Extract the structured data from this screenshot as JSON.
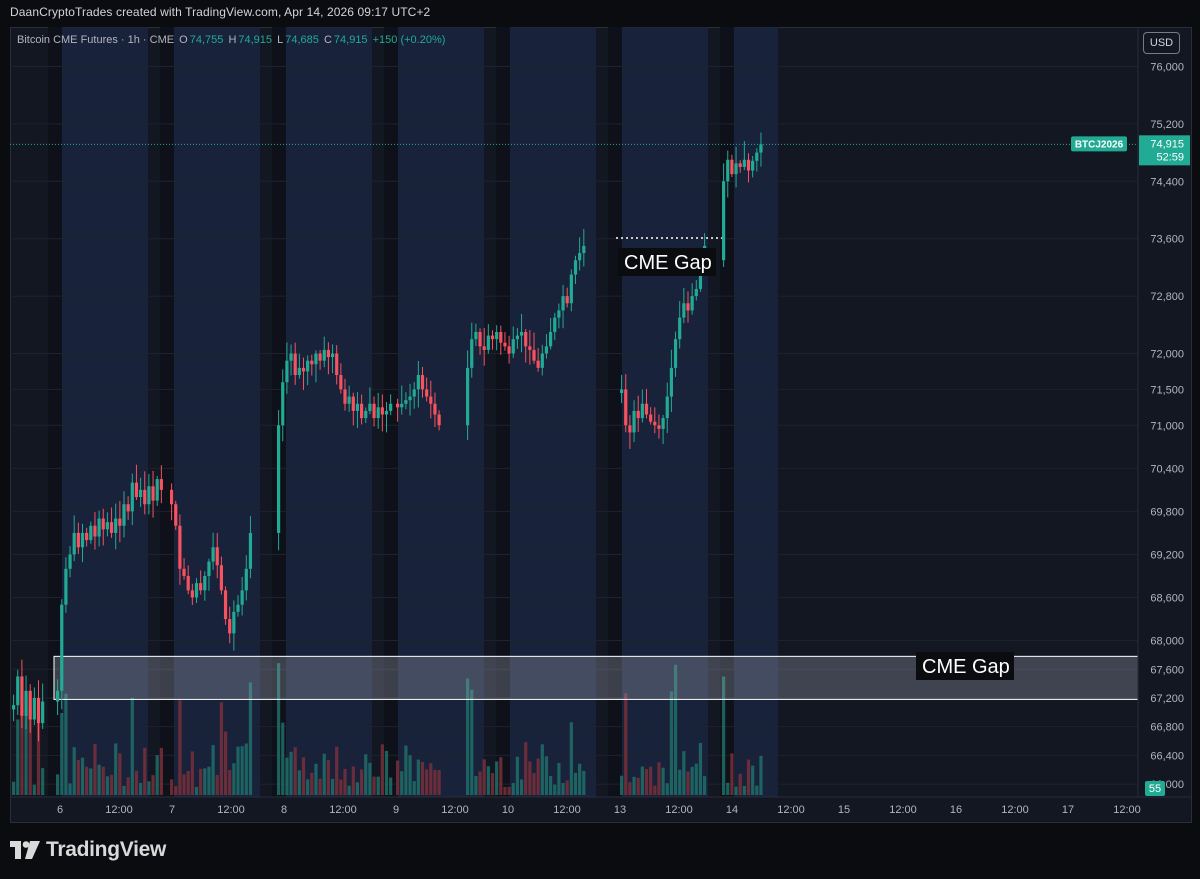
{
  "top_caption": "DaanCryptoTrades created with TradingView.com, Apr 14, 2026 09:17 UTC+2",
  "legend": {
    "symbol": "Bitcoin CME Futures · 1h · CME",
    "o_label": "O",
    "o_value": "74,755",
    "h_label": "H",
    "h_value": "74,915",
    "l_label": "L",
    "l_value": "74,685",
    "c_label": "C",
    "c_value": "74,915",
    "change": "+150 (+0.20%)"
  },
  "currency_button": "USD",
  "price_tag": {
    "symbol": "BTCJ2026",
    "price": "74,915",
    "countdown": "52:59"
  },
  "volume_tag": "55",
  "annotations": {
    "gap_upper_label": "CME Gap",
    "gap_lower_label": "CME Gap"
  },
  "footer_brand": "TradingView",
  "colors": {
    "up": "#22ab94",
    "down": "#f7525f",
    "session_highlight": "#1b2440",
    "background": "#131722",
    "grid": "#1e222d"
  },
  "chart_data": {
    "type": "candlestick",
    "symbol": "BTCJ2026",
    "timeframe": "1h",
    "y_ticks": [
      76000,
      75200,
      74400,
      73600,
      72800,
      72000,
      71500,
      71000,
      70400,
      69800,
      69200,
      68600,
      68000,
      67600,
      67200,
      66800,
      66400,
      66000
    ],
    "ylim": [
      65820,
      76550
    ],
    "x_ticks": [
      "6",
      "12:00",
      "7",
      "12:00",
      "8",
      "12:00",
      "9",
      "12:00",
      "10",
      "12:00",
      "13",
      "12:00",
      "14",
      "12:00",
      "15",
      "12:00",
      "16",
      "12:00",
      "17",
      "12:00"
    ],
    "last_price": 74915,
    "cme_gaps": [
      {
        "label": "CME Gap",
        "from": 73610,
        "to": 73610,
        "style": "dotted"
      },
      {
        "label": "CME Gap",
        "from": 67180,
        "to": 67780,
        "style": "zone"
      }
    ],
    "session_highlight_days": [
      "6",
      "7",
      "8",
      "9",
      "10",
      "13",
      "14"
    ],
    "segments": [
      {
        "day": "5 (end)",
        "points": [
          67100,
          67500,
          66950,
          67300,
          66900,
          67200,
          66850,
          67150
        ]
      },
      {
        "day": "6",
        "points": [
          67300,
          68500,
          69000,
          69200,
          69500,
          69300,
          69500,
          69400,
          69600,
          69450,
          69700,
          69550,
          69650,
          69500,
          69700,
          69600,
          69900,
          69800,
          70200,
          70000,
          70100,
          69900,
          70150,
          69950,
          70250,
          70100
        ]
      },
      {
        "day": "7",
        "points": [
          69900,
          69600,
          69000,
          68900,
          68700,
          68600,
          68800,
          68700,
          68900,
          69100,
          69300,
          69050,
          68700,
          68300,
          68100,
          68400,
          68500,
          68700,
          69000,
          69500
        ]
      },
      {
        "day": "8",
        "points": [
          71000,
          71600,
          71900,
          72000,
          71700,
          71800,
          71750,
          71900,
          71850,
          72000,
          71900,
          72050,
          71950,
          72000,
          71700,
          71500,
          71300,
          71400,
          71200,
          71300,
          71100,
          71200,
          71300,
          71100,
          71250,
          71150,
          71200,
          71300
        ]
      },
      {
        "day": "9",
        "points": [
          71250,
          71300,
          71350,
          71400,
          71500,
          71700,
          71500,
          71400,
          71300,
          71150,
          71000
        ]
      },
      {
        "day": "10",
        "points": [
          71800,
          72200,
          72300,
          72100,
          72050,
          72250,
          72200,
          72300,
          72150,
          72100,
          72000,
          72200,
          72250,
          72300,
          72100,
          72050,
          71900,
          71800,
          72000,
          72100,
          72300,
          72500,
          72600,
          72800,
          72700,
          73100,
          73300,
          73400,
          73500
        ]
      },
      {
        "day": "13",
        "points": [
          71500,
          71000,
          70900,
          71200,
          71100,
          71300,
          71150,
          71050,
          71000,
          70950,
          71100,
          71400,
          71800,
          72200,
          72500,
          72700,
          72600,
          72800,
          72900,
          73200,
          73500
        ]
      },
      {
        "day": "14",
        "points": [
          74400,
          74700,
          74500,
          74650,
          74600,
          74700,
          74550,
          74685,
          74800,
          74915
        ]
      }
    ]
  }
}
